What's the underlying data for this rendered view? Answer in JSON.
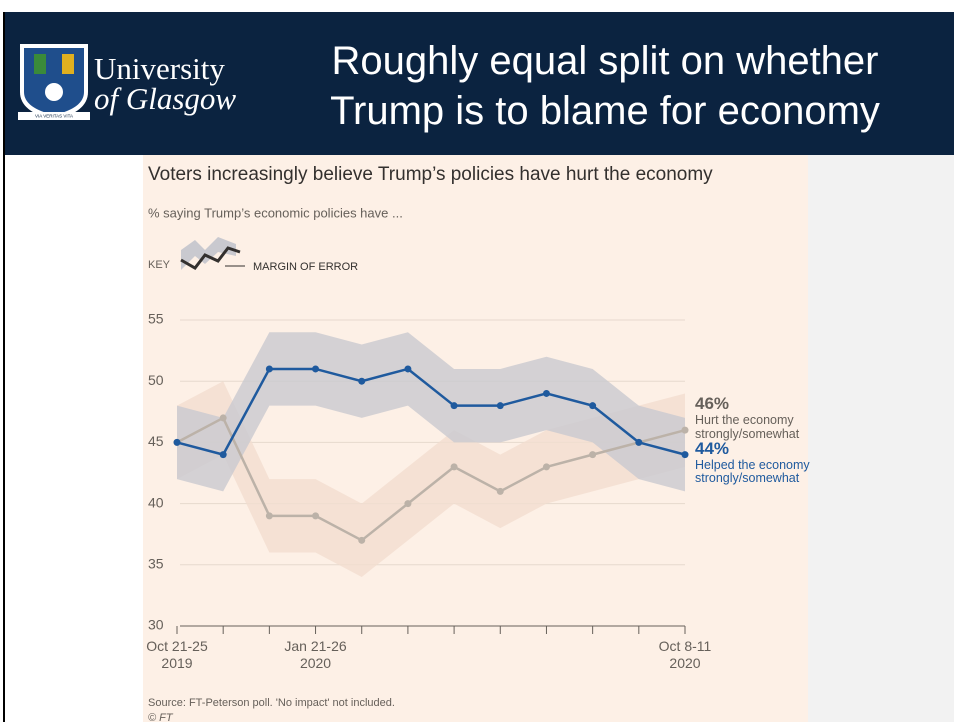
{
  "header": {
    "logo_line1": "University",
    "logo_line2": "of Glasgow",
    "motto": "VIA VERITAS VITA",
    "title": "Roughly equal split on whether Trump is to blame for economy"
  },
  "chart_data": {
    "type": "line",
    "title": "Voters increasingly believe Trump’s policies have hurt the economy",
    "subtitle": "% saying Trump’s economic policies have ...",
    "key_title": "KEY",
    "key_label": "MARGIN OF ERROR",
    "categories": [
      "Oct 21-25\n2019",
      null,
      null,
      "Jan 21-26\n2020",
      null,
      null,
      null,
      null,
      null,
      null,
      null,
      "Oct 8-11\n2020"
    ],
    "series": [
      {
        "name": "Hurt the economy strongly/somewhat",
        "color": "#bcb2a8",
        "band_color": "#f2ddcf",
        "error": 3,
        "values": [
          45,
          47,
          39,
          39,
          37,
          40,
          43,
          41,
          43,
          44,
          45,
          46
        ],
        "value_labels": [
          null,
          null,
          null,
          null,
          null,
          null,
          null,
          null,
          null,
          null,
          null,
          "46%"
        ],
        "label_color": "#66605a"
      },
      {
        "name": "Helped the economy strongly/somewhat",
        "color": "#1f5a9e",
        "band_color": "#c9c9cf",
        "error": 3,
        "values": [
          45,
          44,
          51,
          51,
          50,
          51,
          48,
          48,
          49,
          48,
          45,
          44
        ],
        "value_labels": [
          null,
          null,
          null,
          null,
          null,
          null,
          null,
          null,
          null,
          null,
          null,
          "44%"
        ],
        "label_color": "#1f5a9e"
      }
    ],
    "ylim": [
      30,
      55
    ],
    "yticks": [
      30,
      35,
      40,
      45,
      50,
      55
    ],
    "grid": true
  },
  "source": "Source: FT-Peterson poll. 'No impact' not included.",
  "copyright": "© FT"
}
